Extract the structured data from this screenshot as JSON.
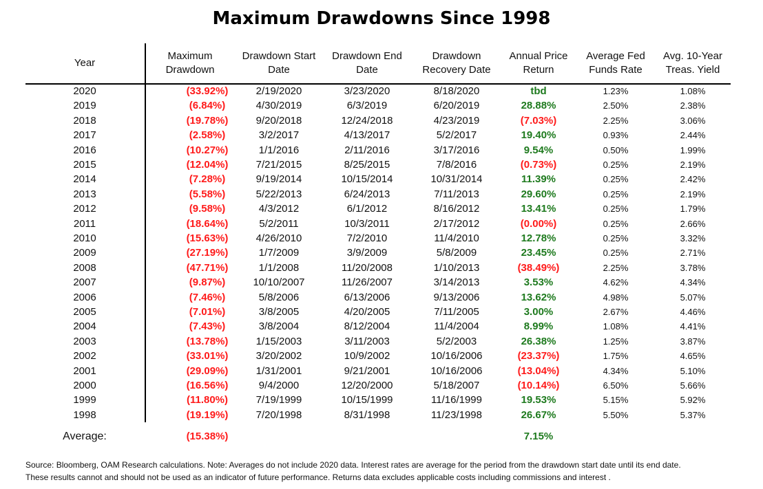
{
  "title": "Maximum Drawdowns Since 1998",
  "headers": {
    "year": "Year",
    "max_dd": [
      "Maximum",
      "Drawdown"
    ],
    "start": [
      "Drawdown Start",
      "Date"
    ],
    "end": [
      "Drawdown End",
      "Date"
    ],
    "recovery": [
      "Drawdown",
      "Recovery Date"
    ],
    "ret": [
      "Annual Price",
      "Return"
    ],
    "fed": [
      "Average Fed",
      "Funds Rate"
    ],
    "treas": [
      "Avg. 10-Year",
      "Treas. Yield"
    ]
  },
  "colors": {
    "negative": "#ff1a1a",
    "positive": "#1e7a1e",
    "text": "#111111"
  },
  "rows": [
    {
      "year": "2020",
      "max_dd": "(33.92%)",
      "start": "2/19/2020",
      "end": "3/23/2020",
      "recovery": "8/18/2020",
      "ret": "tbd",
      "ret_pos": true,
      "fed": "1.23%",
      "treas": "1.08%"
    },
    {
      "year": "2019",
      "max_dd": "(6.84%)",
      "start": "4/30/2019",
      "end": "6/3/2019",
      "recovery": "6/20/2019",
      "ret": "28.88%",
      "ret_pos": true,
      "fed": "2.50%",
      "treas": "2.38%"
    },
    {
      "year": "2018",
      "max_dd": "(19.78%)",
      "start": "9/20/2018",
      "end": "12/24/2018",
      "recovery": "4/23/2019",
      "ret": "(7.03%)",
      "ret_pos": false,
      "fed": "2.25%",
      "treas": "3.06%"
    },
    {
      "year": "2017",
      "max_dd": "(2.58%)",
      "start": "3/2/2017",
      "end": "4/13/2017",
      "recovery": "5/2/2017",
      "ret": "19.40%",
      "ret_pos": true,
      "fed": "0.93%",
      "treas": "2.44%"
    },
    {
      "year": "2016",
      "max_dd": "(10.27%)",
      "start": "1/1/2016",
      "end": "2/11/2016",
      "recovery": "3/17/2016",
      "ret": "9.54%",
      "ret_pos": true,
      "fed": "0.50%",
      "treas": "1.99%"
    },
    {
      "year": "2015",
      "max_dd": "(12.04%)",
      "start": "7/21/2015",
      "end": "8/25/2015",
      "recovery": "7/8/2016",
      "ret": "(0.73%)",
      "ret_pos": false,
      "fed": "0.25%",
      "treas": "2.19%"
    },
    {
      "year": "2014",
      "max_dd": "(7.28%)",
      "start": "9/19/2014",
      "end": "10/15/2014",
      "recovery": "10/31/2014",
      "ret": "11.39%",
      "ret_pos": true,
      "fed": "0.25%",
      "treas": "2.42%"
    },
    {
      "year": "2013",
      "max_dd": "(5.58%)",
      "start": "5/22/2013",
      "end": "6/24/2013",
      "recovery": "7/11/2013",
      "ret": "29.60%",
      "ret_pos": true,
      "fed": "0.25%",
      "treas": "2.19%"
    },
    {
      "year": "2012",
      "max_dd": "(9.58%)",
      "start": "4/3/2012",
      "end": "6/1/2012",
      "recovery": "8/16/2012",
      "ret": "13.41%",
      "ret_pos": true,
      "fed": "0.25%",
      "treas": "1.79%"
    },
    {
      "year": "2011",
      "max_dd": "(18.64%)",
      "start": "5/2/2011",
      "end": "10/3/2011",
      "recovery": "2/17/2012",
      "ret": "(0.00%)",
      "ret_pos": false,
      "fed": "0.25%",
      "treas": "2.66%"
    },
    {
      "year": "2010",
      "max_dd": "(15.63%)",
      "start": "4/26/2010",
      "end": "7/2/2010",
      "recovery": "11/4/2010",
      "ret": "12.78%",
      "ret_pos": true,
      "fed": "0.25%",
      "treas": "3.32%"
    },
    {
      "year": "2009",
      "max_dd": "(27.19%)",
      "start": "1/7/2009",
      "end": "3/9/2009",
      "recovery": "5/8/2009",
      "ret": "23.45%",
      "ret_pos": true,
      "fed": "0.25%",
      "treas": "2.71%"
    },
    {
      "year": "2008",
      "max_dd": "(47.71%)",
      "start": "1/1/2008",
      "end": "11/20/2008",
      "recovery": "1/10/2013",
      "ret": "(38.49%)",
      "ret_pos": false,
      "fed": "2.25%",
      "treas": "3.78%"
    },
    {
      "year": "2007",
      "max_dd": "(9.87%)",
      "start": "10/10/2007",
      "end": "11/26/2007",
      "recovery": "3/14/2013",
      "ret": "3.53%",
      "ret_pos": true,
      "fed": "4.62%",
      "treas": "4.34%"
    },
    {
      "year": "2006",
      "max_dd": "(7.46%)",
      "start": "5/8/2006",
      "end": "6/13/2006",
      "recovery": "9/13/2006",
      "ret": "13.62%",
      "ret_pos": true,
      "fed": "4.98%",
      "treas": "5.07%"
    },
    {
      "year": "2005",
      "max_dd": "(7.01%)",
      "start": "3/8/2005",
      "end": "4/20/2005",
      "recovery": "7/11/2005",
      "ret": "3.00%",
      "ret_pos": true,
      "fed": "2.67%",
      "treas": "4.46%"
    },
    {
      "year": "2004",
      "max_dd": "(7.43%)",
      "start": "3/8/2004",
      "end": "8/12/2004",
      "recovery": "11/4/2004",
      "ret": "8.99%",
      "ret_pos": true,
      "fed": "1.08%",
      "treas": "4.41%"
    },
    {
      "year": "2003",
      "max_dd": "(13.78%)",
      "start": "1/15/2003",
      "end": "3/11/2003",
      "recovery": "5/2/2003",
      "ret": "26.38%",
      "ret_pos": true,
      "fed": "1.25%",
      "treas": "3.87%"
    },
    {
      "year": "2002",
      "max_dd": "(33.01%)",
      "start": "3/20/2002",
      "end": "10/9/2002",
      "recovery": "10/16/2006",
      "ret": "(23.37%)",
      "ret_pos": false,
      "fed": "1.75%",
      "treas": "4.65%"
    },
    {
      "year": "2001",
      "max_dd": "(29.09%)",
      "start": "1/31/2001",
      "end": "9/21/2001",
      "recovery": "10/16/2006",
      "ret": "(13.04%)",
      "ret_pos": false,
      "fed": "4.34%",
      "treas": "5.10%"
    },
    {
      "year": "2000",
      "max_dd": "(16.56%)",
      "start": "9/4/2000",
      "end": "12/20/2000",
      "recovery": "5/18/2007",
      "ret": "(10.14%)",
      "ret_pos": false,
      "fed": "6.50%",
      "treas": "5.66%"
    },
    {
      "year": "1999",
      "max_dd": "(11.80%)",
      "start": "7/19/1999",
      "end": "10/15/1999",
      "recovery": "11/16/1999",
      "ret": "19.53%",
      "ret_pos": true,
      "fed": "5.15%",
      "treas": "5.92%"
    },
    {
      "year": "1998",
      "max_dd": "(19.19%)",
      "start": "7/20/1998",
      "end": "8/31/1998",
      "recovery": "11/23/1998",
      "ret": "26.67%",
      "ret_pos": true,
      "fed": "5.50%",
      "treas": "5.37%"
    }
  ],
  "average": {
    "label": "Average:",
    "max_dd": "(15.38%)",
    "ret": "7.15%"
  },
  "footnote": [
    "Source:  Bloomberg, OAM Research calculations.  Note: Averages do not include 2020 data. Interest rates are average for the period from the drawdown start date until its end date.",
    "These results cannot and should not be used as an indicator of future performance.  Returns data excludes applicable costs including commissions and interest ."
  ]
}
